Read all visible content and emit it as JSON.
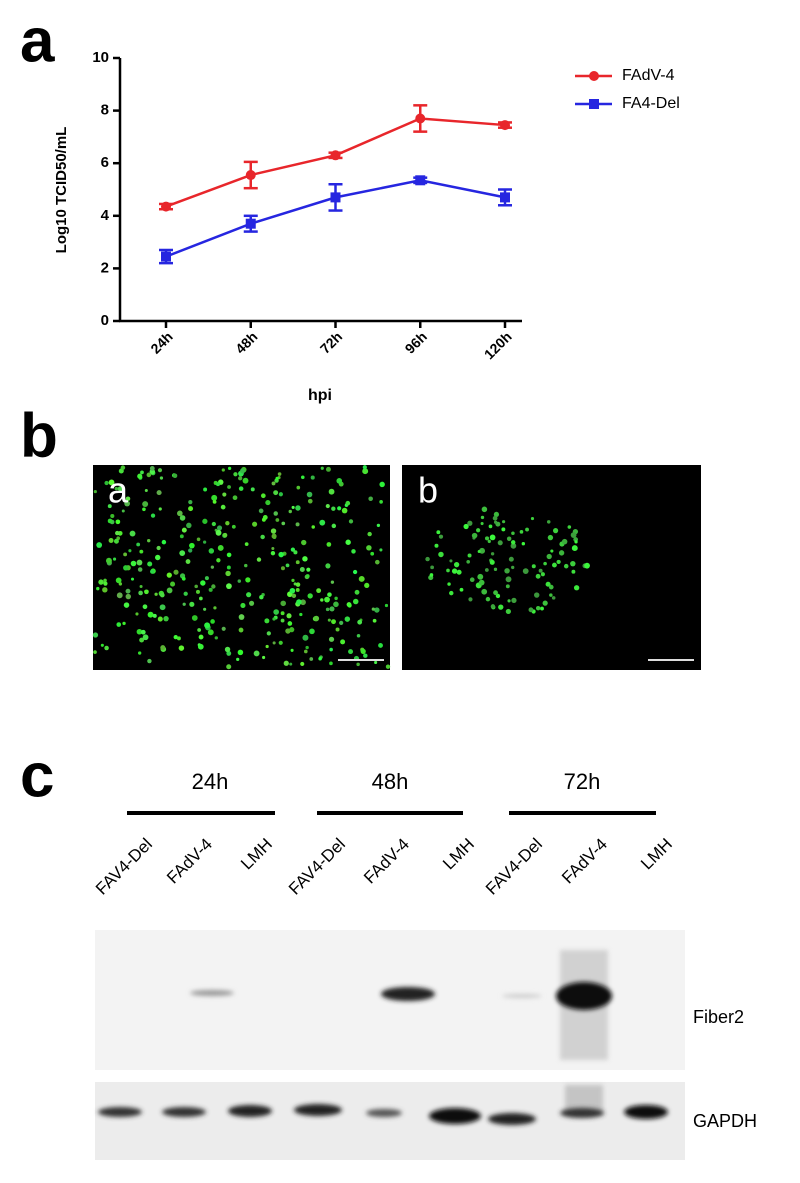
{
  "chart_data": {
    "type": "line",
    "x_label": "hpi",
    "y_label": "Log10 TCID50/mL",
    "categories": [
      "24h",
      "48h",
      "72h",
      "96h",
      "120h"
    ],
    "series": [
      {
        "name": "FAdV-4",
        "color": "#e8262b",
        "marker": "circle",
        "values": [
          4.35,
          5.55,
          6.3,
          7.7,
          7.45
        ],
        "errors": [
          0.1,
          0.5,
          0.1,
          0.5,
          0.1
        ]
      },
      {
        "name": "FA4-Del",
        "color": "#2626e0",
        "marker": "square",
        "values": [
          2.45,
          3.7,
          4.7,
          5.35,
          4.7
        ],
        "errors": [
          0.25,
          0.3,
          0.5,
          0.1,
          0.3
        ]
      }
    ],
    "ylim": [
      0,
      10
    ],
    "yticks": [
      0,
      2,
      4,
      6,
      8,
      10
    ],
    "grid": false,
    "legend": "top-right"
  },
  "panel_labels": [
    "a",
    "b",
    "c"
  ],
  "images": {
    "labels": [
      "a",
      "b"
    ]
  },
  "blot": {
    "time_points": [
      "24h",
      "48h",
      "72h"
    ],
    "lanes": [
      "FAV4-Del",
      "FAdV-4",
      "LMH",
      "FAV4-Del",
      "FAdV-4",
      "LMH",
      "FAV4-Del",
      "FAdV-4",
      "LMH"
    ],
    "bands": [
      "Fiber2",
      "GAPDH"
    ]
  }
}
